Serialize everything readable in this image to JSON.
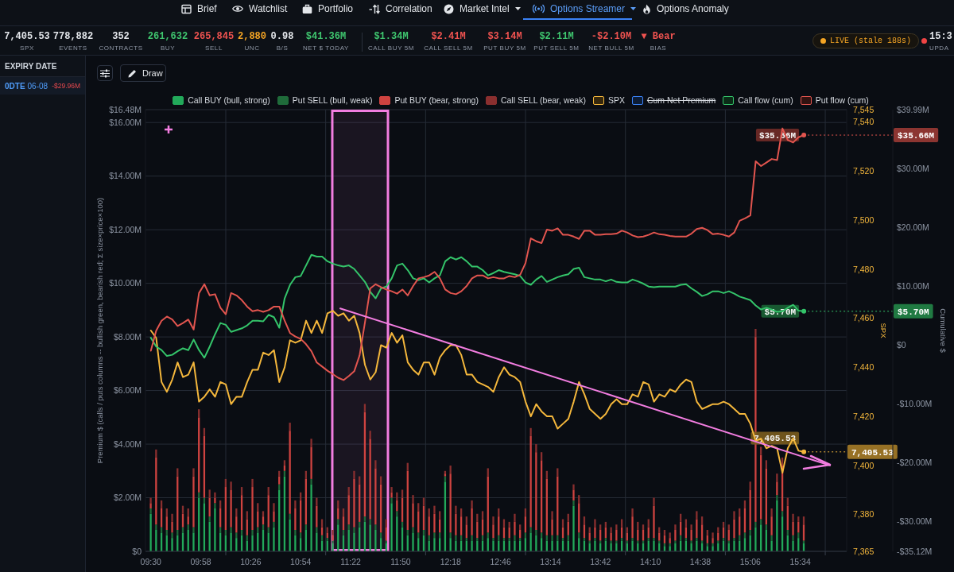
{
  "chart_data": {
    "type": "bar",
    "stacked": true,
    "grid": true,
    "legend": "top",
    "ylabel": "Premium $ (calls / puts columns -- bullish green, bearish red; Σ size×price×100)",
    "y2label": "SPX",
    "y3label": "Cumulative $",
    "xlim": [
      9.45,
      16.0
    ],
    "xticks": [
      {
        "value": 9.5,
        "label": "09:30"
      },
      {
        "value": 9.9667,
        "label": "09:58"
      },
      {
        "value": 10.2,
        "label": null
      },
      {
        "value": 10.4333,
        "label": "10:26"
      },
      {
        "value": 10.9,
        "label": "10:54"
      },
      {
        "value": 11.1333,
        "label": null
      },
      {
        "value": 11.3667,
        "label": "11:22"
      },
      {
        "value": 11.8333,
        "label": "11:50"
      },
      {
        "value": 12.0667,
        "label": null
      },
      {
        "value": 12.3,
        "label": "12:18"
      },
      {
        "value": 12.7667,
        "label": "12:46"
      },
      {
        "value": 13.0,
        "label": null
      },
      {
        "value": 13.2333,
        "label": "13:14"
      },
      {
        "value": 13.7,
        "label": "13:42"
      },
      {
        "value": 13.9333,
        "label": null
      },
      {
        "value": 14.1667,
        "label": "14:10"
      },
      {
        "value": 14.6333,
        "label": "14:38"
      },
      {
        "value": 14.8667,
        "label": null
      },
      {
        "value": 15.1,
        "label": "15:06"
      },
      {
        "value": 15.5667,
        "label": "15:34"
      },
      {
        "value": 15.8,
        "label": null
      }
    ],
    "ylim": [
      0,
      16.48
    ],
    "yticks": [
      {
        "value": 0,
        "label": "$0"
      },
      {
        "value": 2,
        "label": "$2.00M"
      },
      {
        "value": 4,
        "label": "$4.00M"
      },
      {
        "value": 6,
        "label": "$6.00M"
      },
      {
        "value": 8,
        "label": "$8.00M"
      },
      {
        "value": 10,
        "label": "$10.00M"
      },
      {
        "value": 12,
        "label": "$12.00M"
      },
      {
        "value": 14,
        "label": "$14.00M"
      },
      {
        "value": 16,
        "label": "$16.00M"
      },
      {
        "value": 16.48,
        "label": "$16.48M"
      }
    ],
    "y2lim": [
      7365,
      7545
    ],
    "y2ticks": [
      {
        "value": 7365,
        "label": "7,365"
      },
      {
        "value": 7380,
        "label": "7,380"
      },
      {
        "value": 7400,
        "label": "7,400"
      },
      {
        "value": 7420,
        "label": "7,420"
      },
      {
        "value": 7440,
        "label": "7,440"
      },
      {
        "value": 7460,
        "label": "7,460"
      },
      {
        "value": 7480,
        "label": "7,480"
      },
      {
        "value": 7500,
        "label": "7,500"
      },
      {
        "value": 7520,
        "label": "7,520"
      },
      {
        "value": 7540,
        "label": "7,540"
      },
      {
        "value": 7545,
        "label": "7,545"
      }
    ],
    "y3lim": [
      -35.12,
      39.99
    ],
    "y3ticks": [
      {
        "value": -35.12,
        "label": "-$35.12M"
      },
      {
        "value": -30,
        "label": "-$30.00M"
      },
      {
        "value": -20,
        "label": "-$20.00M"
      },
      {
        "value": -10,
        "label": "-$10.00M"
      },
      {
        "value": 0,
        "label": "$0"
      },
      {
        "value": 10,
        "label": "$10.00M"
      },
      {
        "value": 20,
        "label": "$20.00M"
      },
      {
        "value": 30,
        "label": "$30.00M"
      },
      {
        "value": 39.99,
        "label": "$39.99M"
      }
    ],
    "bands": [
      {
        "axis": "x",
        "from": 11.195,
        "to": 11.715,
        "color": "#f27de0"
      }
    ],
    "x": [
      9.5,
      9.55,
      9.6,
      9.65,
      9.7,
      9.75,
      9.8,
      9.85,
      9.9,
      9.95,
      10.0,
      10.05,
      10.1,
      10.15,
      10.2,
      10.25,
      10.3,
      10.35,
      10.4,
      10.45,
      10.5,
      10.55,
      10.6,
      10.65,
      10.7,
      10.75,
      10.8,
      10.85,
      10.9,
      10.95,
      11.0,
      11.05,
      11.1,
      11.15,
      11.2,
      11.25,
      11.3,
      11.35,
      11.4,
      11.45,
      11.5,
      11.55,
      11.6,
      11.65,
      11.7,
      11.75,
      11.8,
      11.85,
      11.9,
      11.95,
      12.0,
      12.05,
      12.1,
      12.15,
      12.2,
      12.25,
      12.3,
      12.35,
      12.4,
      12.45,
      12.5,
      12.55,
      12.6,
      12.65,
      12.7,
      12.75,
      12.8,
      12.85,
      12.9,
      12.95,
      13.0,
      13.05,
      13.1,
      13.15,
      13.2,
      13.25,
      13.3,
      13.35,
      13.4,
      13.45,
      13.5,
      13.55,
      13.6,
      13.65,
      13.7,
      13.75,
      13.8,
      13.85,
      13.9,
      13.95,
      14.0,
      14.05,
      14.1,
      14.15,
      14.2,
      14.25,
      14.3,
      14.35,
      14.4,
      14.45,
      14.5,
      14.55,
      14.6,
      14.65,
      14.7,
      14.75,
      14.8,
      14.85,
      14.9,
      14.95,
      15.0,
      15.05,
      15.1,
      15.15,
      15.2,
      15.25,
      15.3,
      15.35,
      15.4,
      15.45,
      15.5,
      15.55,
      15.6
    ],
    "series": [
      {
        "name": "Call BUY (bull, strong)",
        "color": "#22a95a",
        "values": [
          1.4,
          0.8,
          0.7,
          0.6,
          0.5,
          0.6,
          0.7,
          0.8,
          0.7,
          2.0,
          1.8,
          1.1,
          1.6,
          0.7,
          0.6,
          0.7,
          0.5,
          0.6,
          0.4,
          0.6,
          0.7,
          0.8,
          0.7,
          0.9,
          2.3,
          2.8,
          1.2,
          0.6,
          0.5,
          0.8,
          2.5,
          0.7,
          0.4,
          0.4,
          0.3,
          1.0,
          0.6,
          0.8,
          0.7,
          0.9,
          1.1,
          1.0,
          0.8,
          0.5,
          0.3,
          1.8,
          1.3,
          0.9,
          0.6,
          0.7,
          0.5,
          0.6,
          0.4,
          0.5,
          0.5,
          2.6,
          0.5,
          0.4,
          0.4,
          0.4,
          0.4,
          0.4,
          0.4,
          0.5,
          0.4,
          0.4,
          0.4,
          0.4,
          0.4,
          0.4,
          0.5,
          0.7,
          0.6,
          0.5,
          0.4,
          0.4,
          0.4,
          0.4,
          0.4,
          1.7,
          0.5,
          0.4,
          0.3,
          0.4,
          0.3,
          0.4,
          0.3,
          0.3,
          0.4,
          0.3,
          0.4,
          0.3,
          0.3,
          0.4,
          0.4,
          0.3,
          0.2,
          0.2,
          0.3,
          0.4,
          0.4,
          0.3,
          0.4,
          0.3,
          0.2,
          0.2,
          0.3,
          0.4,
          0.3,
          0.4,
          0.4,
          0.5,
          0.6,
          0.9,
          1.0,
          0.8,
          0.4,
          1.9,
          1.3,
          0.6,
          0.4,
          0.5,
          0.3
        ]
      },
      {
        "name": "Put SELL (bull, weak)",
        "color": "#1f6b3a",
        "values": [
          0.2,
          0.2,
          0.2,
          0.2,
          0.2,
          0.2,
          0.2,
          0.2,
          0.2,
          0.2,
          0.2,
          0.2,
          0.2,
          0.2,
          0.2,
          0.2,
          0.2,
          0.2,
          0.2,
          0.2,
          0.2,
          0.2,
          0.2,
          0.2,
          0.2,
          0.2,
          0.2,
          0.2,
          0.2,
          0.2,
          0.2,
          0.2,
          0.2,
          0.1,
          0.1,
          0.2,
          0.2,
          0.2,
          0.2,
          0.2,
          0.2,
          0.2,
          0.2,
          0.2,
          0.1,
          0.2,
          0.2,
          0.2,
          0.2,
          0.2,
          0.2,
          0.2,
          0.2,
          0.2,
          0.2,
          0.2,
          0.2,
          0.2,
          0.2,
          0.1,
          0.2,
          0.1,
          0.2,
          0.2,
          0.1,
          0.2,
          0.1,
          0.1,
          0.2,
          0.1,
          0.2,
          0.2,
          0.2,
          0.2,
          0.2,
          0.2,
          0.2,
          0.1,
          0.2,
          0.2,
          0.2,
          0.1,
          0.1,
          0.1,
          0.1,
          0.1,
          0.1,
          0.1,
          0.1,
          0.1,
          0.1,
          0.1,
          0.1,
          0.1,
          0.1,
          0.1,
          0.1,
          0.1,
          0.1,
          0.2,
          0.1,
          0.1,
          0.1,
          0.1,
          0.1,
          0.1,
          0.1,
          0.1,
          0.1,
          0.1,
          0.2,
          0.2,
          0.2,
          0.2,
          0.2,
          0.2,
          0.2,
          0.2,
          0.2,
          0.2,
          0.2,
          0.2,
          0.1
        ]
      },
      {
        "name": "Put BUY (bear, strong)",
        "color": "#cf4340",
        "values": [
          0.2,
          2.5,
          0.7,
          0.5,
          0.4,
          2.0,
          0.5,
          0.3,
          1.9,
          2.8,
          2.3,
          0.7,
          0.2,
          0.7,
          1.6,
          1.4,
          0.6,
          1.3,
          0.6,
          1.6,
          0.6,
          0.3,
          1.2,
          0.4,
          0.3,
          0.2,
          3.1,
          0.8,
          1.2,
          1.7,
          1.2,
          0.8,
          0.3,
          0.2,
          0.2,
          0.4,
          0.5,
          1.1,
          1.8,
          1.4,
          3.9,
          3.0,
          2.1,
          1.8,
          0.5,
          0.2,
          0.4,
          0.9,
          2.2,
          0.9,
          0.8,
          0.9,
          0.7,
          0.7,
          0.5,
          0.1,
          2.2,
          0.8,
          0.7,
          0.5,
          1.0,
          0.6,
          0.6,
          2.1,
          0.5,
          0.7,
          0.4,
          0.4,
          0.5,
          0.3,
          0.6,
          3.4,
          2.9,
          2.7,
          2.1,
          0.6,
          2.2,
          0.4,
          0.5,
          0.4,
          1.1,
          0.5,
          0.3,
          0.4,
          0.4,
          0.4,
          0.3,
          0.4,
          0.4,
          0.3,
          0.8,
          0.4,
          0.4,
          0.4,
          1.2,
          0.3,
          0.3,
          0.2,
          0.4,
          0.5,
          0.4,
          0.4,
          0.7,
          0.6,
          0.3,
          0.2,
          0.3,
          0.4,
          0.4,
          0.7,
          0.7,
          0.9,
          1.5,
          6.9,
          2.4,
          2.1,
          0.7,
          0.5,
          1.7,
          0.9,
          0.5,
          0.4,
          0.6
        ]
      },
      {
        "name": "Call SELL (bear, weak)",
        "color": "#8a2f2f",
        "values": [
          0.2,
          0.3,
          0.3,
          0.3,
          0.3,
          0.3,
          0.3,
          0.3,
          0.3,
          0.3,
          0.3,
          0.3,
          0.2,
          0.3,
          0.3,
          0.3,
          0.3,
          0.3,
          0.3,
          0.3,
          0.3,
          0.2,
          0.3,
          0.3,
          0.2,
          0.2,
          0.3,
          0.3,
          0.3,
          0.3,
          0.3,
          0.3,
          0.3,
          0.2,
          0.2,
          0.3,
          0.3,
          0.3,
          0.3,
          0.3,
          0.3,
          0.3,
          0.3,
          0.3,
          0.3,
          0.2,
          0.3,
          0.3,
          0.3,
          0.3,
          0.3,
          0.3,
          0.3,
          0.3,
          0.3,
          0.1,
          0.3,
          0.3,
          0.3,
          0.3,
          0.3,
          0.3,
          0.3,
          0.3,
          0.3,
          0.3,
          0.3,
          0.2,
          0.3,
          0.2,
          0.3,
          0.3,
          0.3,
          0.3,
          0.3,
          0.3,
          0.3,
          0.3,
          0.3,
          0.2,
          0.3,
          0.3,
          0.2,
          0.3,
          0.2,
          0.2,
          0.2,
          0.2,
          0.3,
          0.2,
          0.3,
          0.3,
          0.2,
          0.3,
          0.3,
          0.2,
          0.2,
          0.2,
          0.2,
          0.3,
          0.3,
          0.2,
          0.3,
          0.3,
          0.2,
          0.2,
          0.2,
          0.2,
          0.2,
          0.3,
          0.3,
          0.3,
          0.3,
          0.3,
          0.3,
          0.3,
          0.3,
          0.3,
          0.3,
          0.3,
          0.3,
          0.2,
          0.3
        ]
      },
      {
        "name": "SPX",
        "type": "line",
        "axis": "y2",
        "color": "#f4b73c",
        "values": [
          7455,
          7452,
          7434,
          7430,
          7435,
          7442,
          7436,
          7437,
          7442,
          7426,
          7428,
          7431,
          7428,
          7434,
          7433,
          7425,
          7428,
          7428,
          7434,
          7439,
          7439,
          7446,
          7445,
          7447,
          7434,
          7440,
          7451,
          7450,
          7451,
          7459,
          7454,
          7459,
          7454,
          7462,
          7463,
          7461,
          7462,
          7459,
          7461,
          7454,
          7441,
          7435,
          7438,
          7449,
          7448,
          7454,
          7450,
          7453,
          7442,
          7439,
          7437,
          7442,
          7442,
          7437,
          7444,
          7447,
          7449,
          7449,
          7445,
          7437,
          7437,
          7434,
          7433,
          7432,
          7430,
          7436,
          7440,
          7437,
          7436,
          7434,
          7426,
          7420,
          7425,
          7422,
          7420,
          7420,
          7415,
          7417,
          7419,
          7426,
          7434,
          7429,
          7423,
          7421,
          7419,
          7421,
          7425,
          7427,
          7425,
          7425,
          7429,
          7428,
          7434,
          7433,
          7426,
          7429,
          7428,
          7431,
          7430,
          7433,
          7435,
          7434,
          7426,
          7423,
          7424,
          7425,
          7425,
          7426,
          7425,
          7423,
          7421,
          7421,
          7417,
          7410,
          7411,
          7407,
          7408,
          7407,
          7397,
          7407,
          7411,
          7406,
          7405.53
        ],
        "value_labels": [
          null,
          null,
          null,
          null,
          null,
          null,
          null,
          null,
          null,
          null,
          null,
          null,
          null,
          null,
          null,
          null,
          null,
          null,
          null,
          null,
          null,
          null,
          null,
          null,
          null,
          null,
          null,
          null,
          null,
          null,
          null,
          null,
          null,
          null,
          null,
          null,
          null,
          null,
          null,
          null,
          null,
          null,
          null,
          null,
          null,
          null,
          null,
          null,
          null,
          null,
          null,
          null,
          null,
          null,
          null,
          null,
          null,
          null,
          null,
          null,
          null,
          null,
          null,
          null,
          null,
          null,
          null,
          null,
          null,
          null,
          null,
          null,
          null,
          null,
          null,
          null,
          null,
          null,
          null,
          null,
          null,
          null,
          null,
          null,
          null,
          null,
          null,
          null,
          null,
          null,
          null,
          null,
          null,
          null,
          null,
          null,
          null,
          null,
          null,
          null,
          null,
          null,
          null,
          null,
          null,
          null,
          null,
          null,
          null,
          null,
          null,
          null,
          null,
          null,
          null,
          null,
          null,
          null,
          null,
          null,
          null,
          null,
          "7,405.53"
        ]
      },
      {
        "name": "Cum Net Premium",
        "type": "line",
        "axis": "y3",
        "color": "#3b82f6",
        "values": [
          null,
          null,
          null,
          null,
          null,
          null,
          null,
          null,
          null,
          null,
          null,
          null,
          null,
          null,
          null,
          null,
          null,
          null,
          null,
          null,
          null,
          null,
          null,
          null,
          null,
          null,
          null,
          null,
          null,
          null,
          null,
          null,
          null,
          null,
          null,
          null,
          null,
          null,
          null,
          null,
          null,
          null,
          null,
          null,
          null,
          null,
          null,
          null,
          null,
          null,
          null,
          null,
          null,
          null,
          null,
          null,
          null,
          null,
          null,
          null,
          null,
          null,
          null,
          null,
          null,
          null,
          null,
          null,
          null,
          null,
          null,
          null,
          null,
          null,
          null,
          null,
          null,
          null,
          null,
          null,
          null,
          null,
          null,
          null,
          null,
          null,
          null,
          null,
          null,
          null,
          null,
          null,
          null,
          null,
          null,
          null,
          null,
          null,
          null,
          null,
          null,
          null,
          null,
          null,
          null,
          null,
          null,
          null,
          null,
          null,
          null,
          null,
          null,
          null,
          null,
          null,
          null,
          null,
          null,
          null,
          null,
          null,
          null
        ]
      },
      {
        "name": "Call flow (cum)",
        "type": "line",
        "axis": "y3",
        "color": "#34c46a",
        "values": [
          1.2,
          -0.3,
          -0.9,
          -1.9,
          -1.7,
          -1.1,
          -0.6,
          -0.9,
          0.9,
          -0.9,
          -2.2,
          -0.3,
          1.8,
          3.7,
          3.4,
          2.2,
          2.5,
          2.8,
          3.3,
          4.1,
          4.1,
          4.0,
          5.1,
          4.7,
          2.9,
          7.9,
          10.2,
          11.5,
          11.7,
          13.5,
          15.3,
          15.0,
          15.0,
          14.2,
          13.8,
          13.5,
          13.3,
          13.5,
          12.9,
          11.8,
          10.7,
          9.0,
          7.9,
          9.6,
          9.9,
          11.3,
          13.5,
          13.8,
          12.7,
          11.3,
          11.0,
          11.3,
          10.6,
          11.3,
          11.8,
          14.2,
          14.9,
          14.5,
          14.9,
          14.2,
          13.3,
          13.3,
          12.7,
          11.8,
          12.2,
          12.7,
          12.4,
          12.2,
          12.0,
          11.7,
          10.6,
          10.2,
          11.1,
          11.7,
          10.7,
          11.1,
          11.5,
          11.8,
          12.0,
          12.9,
          13.1,
          11.5,
          11.3,
          11.1,
          11.1,
          10.8,
          11.1,
          10.7,
          10.6,
          10.6,
          11.1,
          10.8,
          10.4,
          9.9,
          9.8,
          9.9,
          9.9,
          9.9,
          9.9,
          10.2,
          10.3,
          9.6,
          9.0,
          8.3,
          8.6,
          9.1,
          9.1,
          8.8,
          9.1,
          8.7,
          8.2,
          7.9,
          7.6,
          6.7,
          6.0,
          6.3,
          6.0,
          5.6,
          5.7,
          6.3,
          6.8,
          5.8,
          5.7
        ],
        "value_labels": [
          null,
          null,
          null,
          null,
          null,
          null,
          null,
          null,
          null,
          null,
          null,
          null,
          null,
          null,
          null,
          null,
          null,
          null,
          null,
          null,
          null,
          null,
          null,
          null,
          null,
          null,
          null,
          null,
          null,
          null,
          null,
          null,
          null,
          null,
          null,
          null,
          null,
          null,
          null,
          null,
          null,
          null,
          null,
          null,
          null,
          null,
          null,
          null,
          null,
          null,
          null,
          null,
          null,
          null,
          null,
          null,
          null,
          null,
          null,
          null,
          null,
          null,
          null,
          null,
          null,
          null,
          null,
          null,
          null,
          null,
          null,
          null,
          null,
          null,
          null,
          null,
          null,
          null,
          null,
          null,
          null,
          null,
          null,
          null,
          null,
          null,
          null,
          null,
          null,
          null,
          null,
          null,
          null,
          null,
          null,
          null,
          null,
          null,
          null,
          null,
          null,
          null,
          null,
          null,
          null,
          null,
          null,
          null,
          null,
          null,
          null,
          null,
          null,
          null,
          null,
          null,
          null,
          null,
          null,
          null,
          null,
          null,
          "$5.70M"
        ]
      },
      {
        "name": "Put flow (cum)",
        "type": "line",
        "axis": "y3",
        "color": "#e2554f",
        "values": [
          -1.0,
          2.4,
          4.1,
          4.8,
          4.3,
          3.2,
          3.7,
          4.3,
          2.6,
          8.8,
          10.3,
          8.4,
          8.6,
          6.3,
          5.2,
          8.8,
          8.4,
          7.6,
          6.5,
          5.7,
          5.9,
          5.6,
          5.9,
          6.5,
          6.5,
          4.1,
          2.0,
          1.4,
          1.0,
          0.1,
          -1.1,
          -3.0,
          -3.7,
          -4.4,
          -5.0,
          -5.6,
          -6.0,
          -5.3,
          -4.5,
          -1.8,
          3.8,
          9.6,
          10.3,
          9.8,
          9.4,
          9.1,
          8.7,
          9.4,
          8.4,
          10.0,
          11.3,
          11.5,
          11.8,
          12.4,
          11.3,
          9.4,
          8.8,
          8.6,
          9.1,
          10.0,
          11.3,
          11.8,
          11.8,
          11.3,
          11.5,
          11.3,
          11.3,
          11.7,
          11.5,
          11.9,
          13.9,
          18.1,
          17.6,
          17.3,
          19.6,
          19.4,
          19.8,
          18.7,
          18.7,
          18.4,
          18.0,
          19.4,
          19.4,
          18.7,
          18.7,
          18.8,
          18.8,
          18.9,
          19.4,
          19.1,
          18.6,
          18.3,
          18.4,
          18.7,
          19.1,
          18.8,
          18.7,
          18.5,
          18.4,
          18.4,
          18.4,
          18.9,
          19.7,
          19.9,
          19.5,
          18.8,
          18.9,
          18.7,
          18.4,
          19.1,
          21.1,
          21.5,
          22.0,
          31.2,
          30.4,
          31.0,
          31.6,
          31.4,
          36.8,
          34.8,
          34.4,
          35.3,
          35.66
        ],
        "value_labels": [
          null,
          null,
          null,
          null,
          null,
          null,
          null,
          null,
          null,
          null,
          null,
          null,
          null,
          null,
          null,
          null,
          null,
          null,
          null,
          null,
          null,
          null,
          null,
          null,
          null,
          null,
          null,
          null,
          null,
          null,
          null,
          null,
          null,
          null,
          null,
          null,
          null,
          null,
          null,
          null,
          null,
          null,
          null,
          null,
          null,
          null,
          null,
          null,
          null,
          null,
          null,
          null,
          null,
          null,
          null,
          null,
          null,
          null,
          null,
          null,
          null,
          null,
          null,
          null,
          null,
          null,
          null,
          null,
          null,
          null,
          null,
          null,
          null,
          null,
          null,
          null,
          null,
          null,
          null,
          null,
          null,
          null,
          null,
          null,
          null,
          null,
          null,
          null,
          null,
          null,
          null,
          null,
          null,
          null,
          null,
          null,
          null,
          null,
          null,
          null,
          null,
          null,
          null,
          null,
          null,
          null,
          null,
          null,
          null,
          null,
          null,
          null,
          null,
          null,
          null,
          null,
          null,
          null,
          null,
          null,
          null,
          null,
          "$35.66M"
        ]
      },
      {
        "type": "line",
        "axis": "y2",
        "color": "#f27de0",
        "x": [
          11.269,
          15.844
        ],
        "values": [
          7464,
          7400
        ]
      }
    ],
    "annotations": [
      "Brief",
      "Watchlist",
      "Portfolio",
      "Correlation",
      "Market Intel",
      "Options Streamer",
      "Options Anomaly",
      "7,405.53",
      "SPX",
      "778,882",
      "EVENTS",
      "352",
      "CONTRACTS",
      "261,632",
      "BUY",
      "265,845",
      "SELL",
      "2,880",
      "UNC",
      "0.98",
      "B/S",
      "$41.36M",
      "NET $ TODAY",
      "$1.34M",
      "CALL BUY 5M",
      "$2.41M",
      "CALL SELL 5M",
      "$3.14M",
      "PUT BUY 5M",
      "$2.11M",
      "PUT SELL 5M",
      "-$2.10M",
      "NET BULL 5M",
      "▼ Bear",
      "BIAS",
      "LIVE (stale 188s)",
      "15:3",
      "UPDA",
      "EXPIRY DATE",
      "0DTE",
      "06-08",
      "-$29.96M",
      "Draw"
    ]
  }
}
